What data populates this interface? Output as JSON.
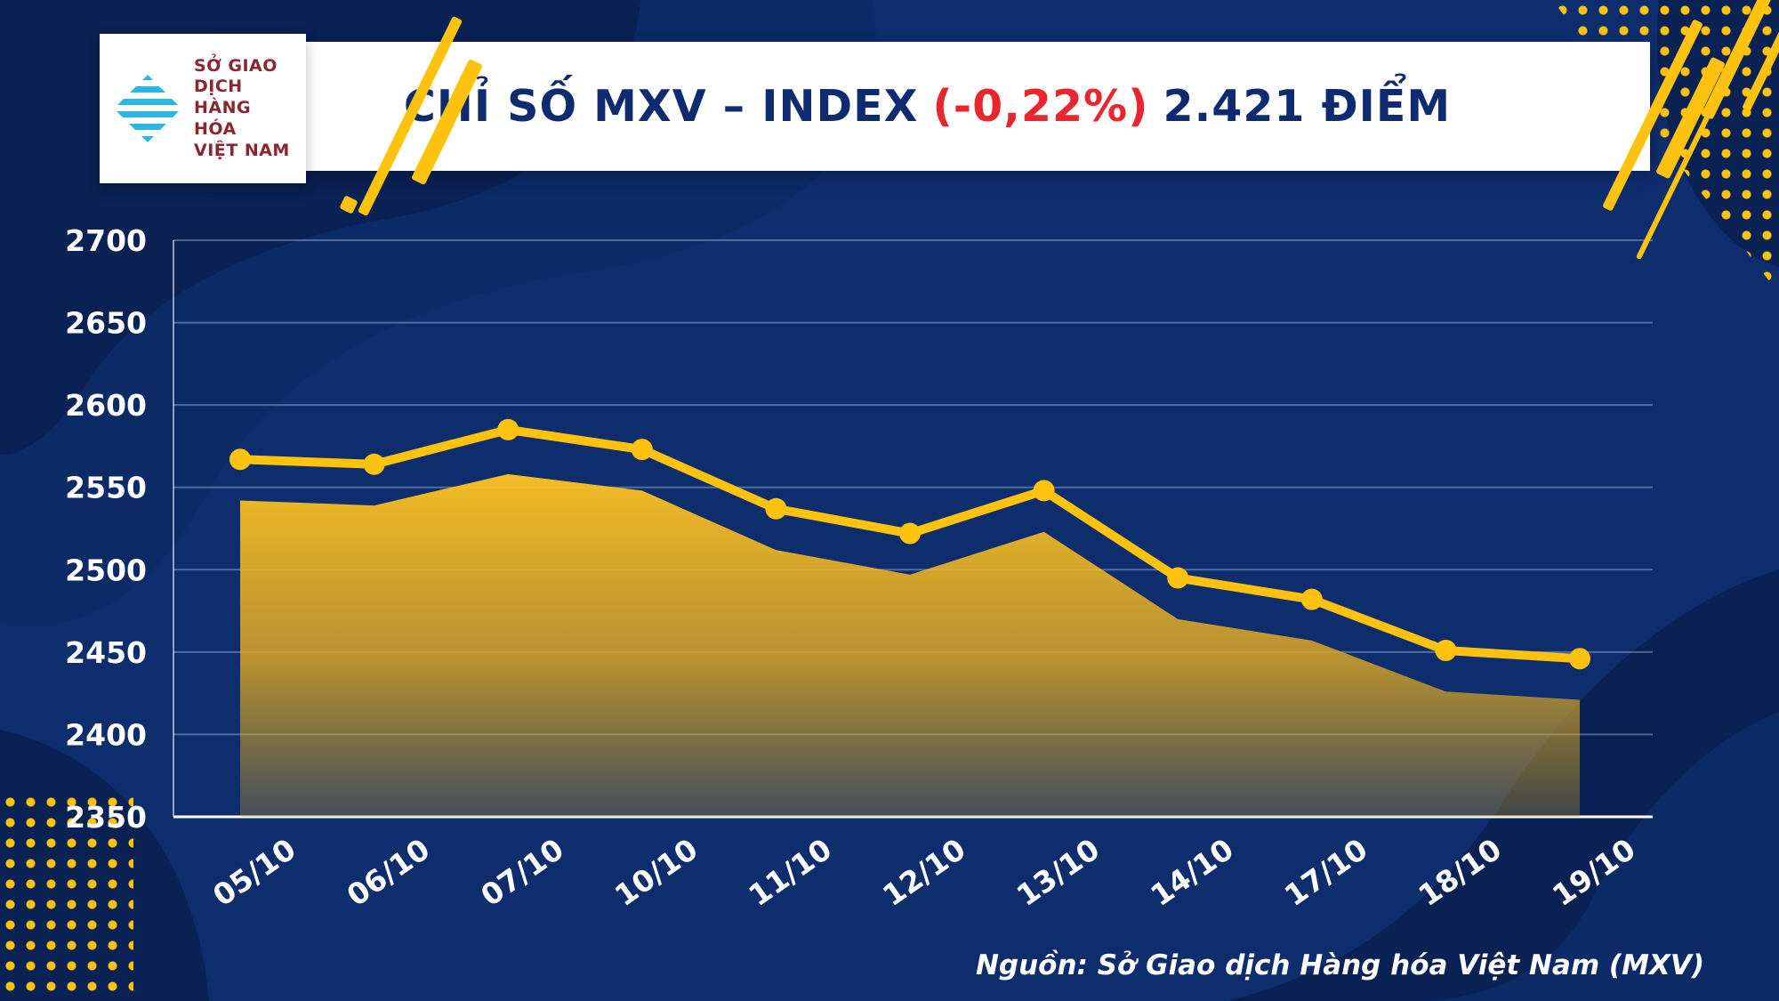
{
  "header": {
    "logo_lines": [
      "SỞ GIAO DỊCH",
      "HÀNG HÓA",
      "VIỆT NAM"
    ],
    "title_main": "CHỈ SỐ MXV – INDEX",
    "title_change": "(-0,22%)",
    "title_value": "2.421 ĐIỂM"
  },
  "footer": {
    "source": "Nguồn: Sở Giao dịch Hàng hóa Việt Nam (MXV)"
  },
  "colors": {
    "accent_yellow": "#ffc20e",
    "title_navy": "#0d2b6e",
    "change_red": "#e8262d",
    "logo_cyan": "#29b8e5",
    "logo_maroon": "#8a2532",
    "background_navy": "#0d2d6d"
  },
  "chart_data": {
    "type": "line",
    "title": "CHỈ SỐ MXV – INDEX (-0,22%) 2.421 ĐIỂM",
    "categories": [
      "05/10",
      "06/10",
      "07/10",
      "10/10",
      "11/10",
      "12/10",
      "13/10",
      "14/10",
      "17/10",
      "18/10",
      "19/10"
    ],
    "series": [
      {
        "name": "MXV-Index (marker line)",
        "style": "line+markers",
        "values": [
          2567,
          2564,
          2585,
          2573,
          2537,
          2522,
          2548,
          2495,
          2482,
          2451,
          2446
        ]
      },
      {
        "name": "MXV-Index (area fill)",
        "style": "area",
        "values": [
          2542,
          2539,
          2558,
          2548,
          2512,
          2497,
          2523,
          2470,
          2457,
          2426,
          2421
        ]
      }
    ],
    "ylim": [
      2350,
      2700
    ],
    "yticks": [
      2350,
      2400,
      2450,
      2500,
      2550,
      2600,
      2650,
      2700
    ],
    "xlabel": "",
    "ylabel": "",
    "grid": true,
    "legend_position": "none"
  }
}
